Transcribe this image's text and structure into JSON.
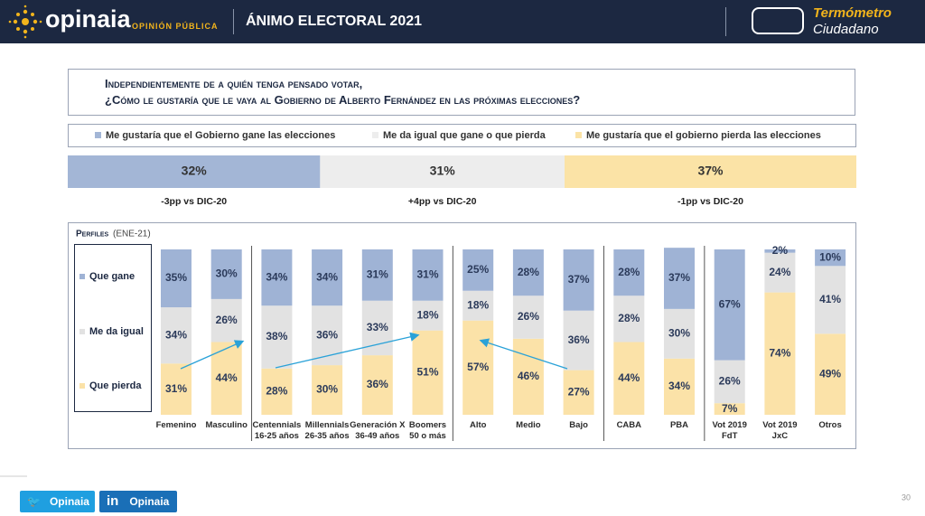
{
  "header": {
    "brand": "opinaia",
    "brand_sub": "OPINIÓN PÚBLICA",
    "title": "ÁNIMO ELECTORAL 2021",
    "badge_line1": "Termómetro",
    "badge_line2": "Ciudadano"
  },
  "question": [
    "Independientemente de a quién tenga pensado votar,",
    "¿Cómo le gustaría que le vaya al Gobierno de Alberto Fernández en las próximas elecciones?"
  ],
  "chart_data": [
    {
      "type": "bar",
      "orientation": "horizontal",
      "stacked": true,
      "xlim": [
        0,
        100
      ],
      "series": [
        {
          "name": "Me gustaría que el Gobierno gane las elecciones",
          "color": "#a3b6d6",
          "values": [
            32
          ],
          "value_labels": [
            "32%"
          ]
        },
        {
          "name": "Me da igual que gane o que pierda",
          "color": "#ededed",
          "values": [
            31
          ],
          "value_labels": [
            "31%"
          ]
        },
        {
          "name": "Me gustaría que el gobierno pierda las elecciones",
          "color": "#fbe3a6",
          "values": [
            37
          ],
          "value_labels": [
            "37%"
          ]
        }
      ],
      "annotations": [
        "-3pp vs DIC-20",
        "+4pp vs DIC-20",
        "-1pp vs DIC-20"
      ]
    },
    {
      "type": "bar",
      "stacked": true,
      "title": "Perfiles",
      "subtitle": "(ENE-21)",
      "ylim": [
        0,
        100
      ],
      "categories": [
        "Femenino",
        "Masculino",
        "Centennials\n16-25 años",
        "Millennials\n26-35 años",
        "Generación X\n36-49 años",
        "Boomers\n50 o más",
        "Alto",
        "Medio",
        "Bajo",
        "CABA",
        "PBA",
        "Vot 2019\nFdT",
        "Vot 2019\nJxC",
        "Otros"
      ],
      "series": [
        {
          "name": "Que gane",
          "color": "#9fb3d5",
          "values": [
            35,
            30,
            34,
            34,
            31,
            31,
            25,
            28,
            37,
            28,
            37,
            67,
            2,
            10
          ],
          "value_labels": [
            "35%",
            "30%",
            "34%",
            "34%",
            "31%",
            "31%",
            "25%",
            "28%",
            "37%",
            "28%",
            "37%",
            "67%",
            "2%",
            "10%"
          ]
        },
        {
          "name": "Me da igual",
          "color": "#e2e2e2",
          "values": [
            34,
            26,
            38,
            36,
            33,
            18,
            18,
            26,
            36,
            28,
            30,
            26,
            24,
            41
          ],
          "value_labels": [
            "34%",
            "26%",
            "38%",
            "36%",
            "33%",
            "18%",
            "18%",
            "26%",
            "36%",
            "28%",
            "30%",
            "26%",
            "24%",
            "41%"
          ]
        },
        {
          "name": "Que pierda",
          "color": "#fbe2a8",
          "values": [
            31,
            44,
            28,
            30,
            36,
            51,
            57,
            46,
            27,
            44,
            34,
            7,
            74,
            49
          ],
          "value_labels": [
            "31%",
            "44%",
            "28%",
            "30%",
            "36%",
            "51%",
            "57%",
            "46%",
            "27%",
            "44%",
            "34%",
            "7%",
            "74%",
            "49%"
          ]
        }
      ]
    }
  ],
  "footer": {
    "twitter": "Opinaia",
    "linkedin": "Opinaia",
    "page": "30"
  }
}
